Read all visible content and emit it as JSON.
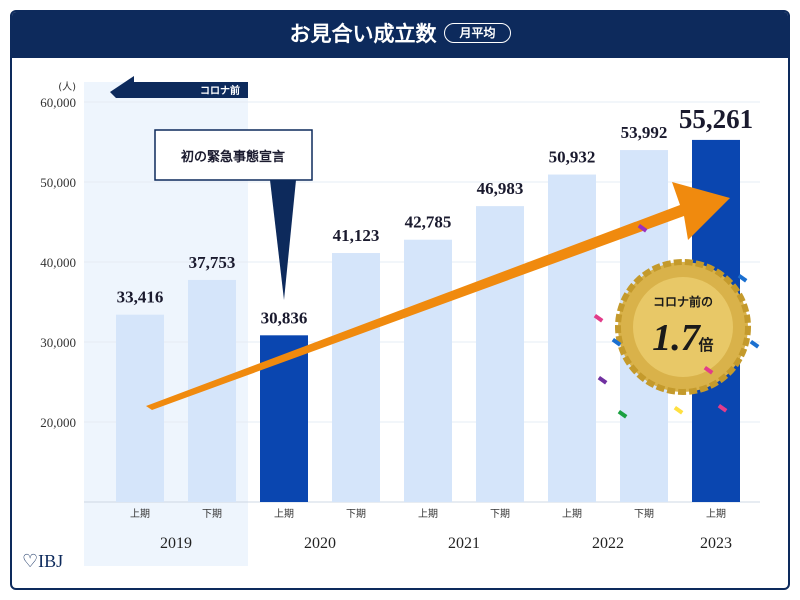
{
  "header": {
    "title": "お見合い成立数",
    "badge": "月平均"
  },
  "logo": "IBJ",
  "chart_data": {
    "type": "bar",
    "ylabel": "(人)",
    "ylim": [
      10000,
      60000
    ],
    "yticks": [
      "20,000",
      "30,000",
      "40,000",
      "50,000",
      "60,000"
    ],
    "ytick_values": [
      20000,
      30000,
      40000,
      50000,
      60000
    ],
    "categories": [
      "上期",
      "下期",
      "上期",
      "下期",
      "上期",
      "下期",
      "上期",
      "下期",
      "上期"
    ],
    "years": [
      "2019",
      "2020",
      "2021",
      "2022",
      "2023"
    ],
    "values": [
      33416,
      37753,
      30836,
      41123,
      42785,
      46983,
      50932,
      53992,
      55261
    ],
    "labels": [
      "33,416",
      "37,753",
      "30,836",
      "41,123",
      "42,785",
      "46,983",
      "50,932",
      "53,992",
      "55,261"
    ],
    "highlight": [
      2,
      8
    ],
    "colors": {
      "bar": "#d5e5fa",
      "highlight": "#0a46b0",
      "arrow": "#f08a0e",
      "navy": "#0d2a5c"
    },
    "annotations": {
      "pre_covid": "コロナ前",
      "emergency": "初の緊急事態宣言",
      "medal_top": "コロナ前の",
      "medal_value": "1.7",
      "medal_unit": "倍"
    }
  }
}
